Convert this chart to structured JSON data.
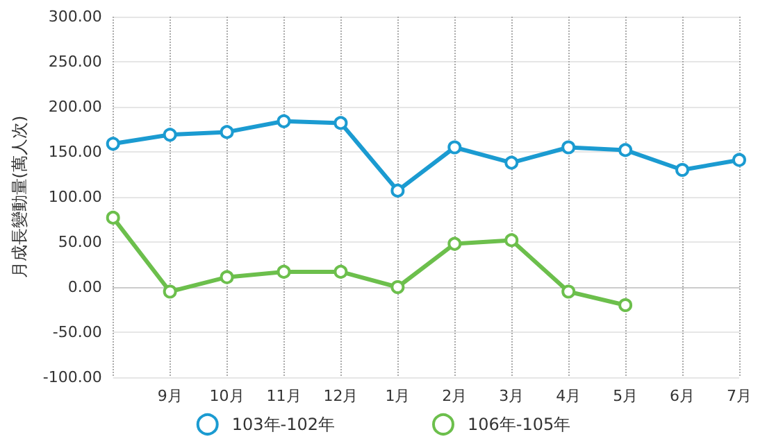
{
  "chart_data": {
    "type": "line",
    "ylabel": "月成長變動量(萬人次)",
    "categories": [
      null,
      "9月",
      "10月",
      "11月",
      "12月",
      "1月",
      "2月",
      "3月",
      "4月",
      "5月",
      "6月",
      "7月"
    ],
    "series": [
      {
        "name": "103年-102年",
        "color": "#1b9bd1",
        "values": [
          159,
          169,
          172,
          184,
          182,
          107,
          155,
          138,
          155,
          152,
          130,
          141
        ]
      },
      {
        "name": "106年-105年",
        "color": "#6cbf4c",
        "values": [
          77,
          -5,
          11,
          17,
          17,
          0,
          48,
          52,
          -5,
          -20,
          null,
          null
        ]
      }
    ],
    "ylim": [
      -100,
      300
    ],
    "yticks": [
      {
        "value": -100,
        "label": "-100.00"
      },
      {
        "value": -50,
        "label": "-50.00"
      },
      {
        "value": 0,
        "label": "0.00"
      },
      {
        "value": 50,
        "label": "50.00"
      },
      {
        "value": 100,
        "label": "100.00"
      },
      {
        "value": 150,
        "label": "150.00"
      },
      {
        "value": 200,
        "label": "200.00"
      },
      {
        "value": 250,
        "label": "250.00"
      },
      {
        "value": 300,
        "label": "300.00"
      }
    ],
    "grid": true,
    "legend": "bottom",
    "marker": "circle",
    "line_style": "solid"
  }
}
